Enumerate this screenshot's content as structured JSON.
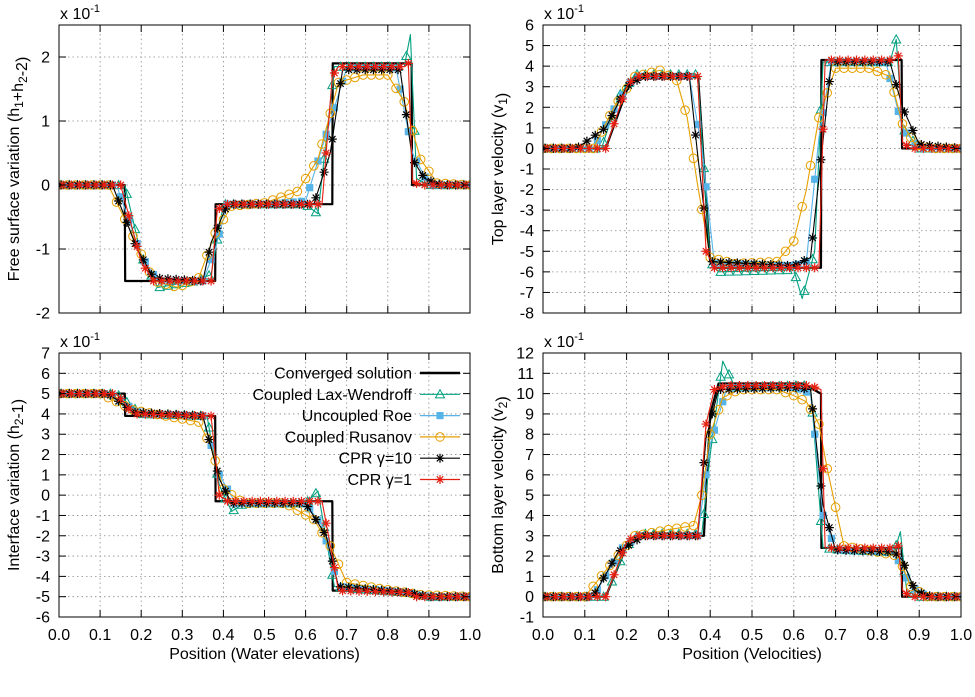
{
  "chart_data": [
    {
      "type": "line",
      "id": "free-surface",
      "ylabel": "Free surface variation (h1+h2-2)",
      "xlabel": "",
      "scale_label": "x 10",
      "scale_exp": "-1",
      "xlim": [
        0,
        1
      ],
      "ylim": [
        -2,
        2.5
      ],
      "yticks": [
        -2,
        -1,
        0,
        1,
        2
      ],
      "xticks": [],
      "grid": true,
      "series": [
        {
          "name": "Converged solution",
          "x": [
            0,
            0.16,
            0.161,
            0.38,
            0.381,
            0.665,
            0.666,
            0.858,
            0.859,
            1
          ],
          "y": [
            0,
            0,
            -1.5,
            -1.5,
            -0.3,
            -0.3,
            1.9,
            1.9,
            0,
            0
          ]
        },
        {
          "name": "Coupled Lax-Wendroff",
          "x": [
            0,
            0.16,
            0.2,
            0.24,
            0.33,
            0.37,
            0.4,
            0.47,
            0.6,
            0.63,
            0.67,
            0.72,
            0.84,
            0.855,
            0.87,
            0.9,
            1
          ],
          "y": [
            0,
            0,
            -1.1,
            -1.6,
            -1.5,
            -1.4,
            -0.3,
            -0.3,
            -0.3,
            -0.45,
            1.85,
            1.85,
            1.85,
            2.35,
            0.1,
            0,
            0
          ]
        },
        {
          "name": "Uncoupled Roe",
          "x": [
            0,
            0.14,
            0.2,
            0.24,
            0.35,
            0.38,
            0.41,
            0.5,
            0.6,
            0.66,
            0.7,
            0.82,
            0.86,
            0.9,
            1
          ],
          "y": [
            0,
            0,
            -1.1,
            -1.5,
            -1.5,
            -1.0,
            -0.3,
            -0.3,
            -0.25,
            1.0,
            1.83,
            1.83,
            0.5,
            0,
            0
          ]
        },
        {
          "name": "Coupled Rusanov",
          "x": [
            0,
            0.12,
            0.18,
            0.23,
            0.29,
            0.34,
            0.38,
            0.42,
            0.5,
            0.58,
            0.63,
            0.68,
            0.74,
            0.8,
            0.84,
            0.88,
            0.92,
            1
          ],
          "y": [
            0,
            0,
            -0.8,
            -1.5,
            -1.6,
            -1.45,
            -0.75,
            -0.33,
            -0.28,
            -0.1,
            0.4,
            1.6,
            1.72,
            1.72,
            1.3,
            0.4,
            0.03,
            0
          ]
        },
        {
          "name": "CPR γ=10",
          "x": [
            0,
            0.13,
            0.19,
            0.23,
            0.35,
            0.37,
            0.41,
            0.5,
            0.62,
            0.66,
            0.69,
            0.83,
            0.86,
            0.89,
            0.93,
            1
          ],
          "y": [
            0,
            0,
            -1.0,
            -1.45,
            -1.5,
            -0.9,
            -0.3,
            -0.3,
            -0.3,
            0.5,
            1.8,
            1.8,
            0.4,
            0.1,
            0,
            0
          ]
        },
        {
          "name": "CPR γ=1",
          "x": [
            0,
            0.15,
            0.2,
            0.23,
            0.37,
            0.385,
            0.4,
            0.5,
            0.64,
            0.665,
            0.68,
            0.84,
            0.85,
            0.86,
            0.88,
            1
          ],
          "y": [
            0,
            0,
            -1.2,
            -1.5,
            -1.5,
            -0.4,
            -0.3,
            -0.3,
            -0.3,
            1.7,
            1.85,
            1.85,
            1.9,
            0.05,
            0,
            0
          ]
        }
      ]
    },
    {
      "type": "line",
      "id": "top-velocity",
      "ylabel": "Top layer velocity (v1)",
      "xlabel": "",
      "scale_label": "x 10",
      "scale_exp": "-1",
      "xlim": [
        0,
        1
      ],
      "ylim": [
        -8,
        6
      ],
      "yticks": [
        -8,
        -7,
        -6,
        -5,
        -4,
        -3,
        -2,
        -1,
        0,
        1,
        2,
        3,
        4,
        5,
        6
      ],
      "xticks": [],
      "grid": true,
      "series": [
        {
          "name": "Converged solution",
          "x": [
            0,
            0.15,
            0.2,
            0.22,
            0.37,
            0.371,
            0.4,
            0.41,
            0.64,
            0.665,
            0.666,
            0.858,
            0.859,
            1
          ],
          "y": [
            0,
            0,
            2.8,
            3.5,
            3.5,
            3.5,
            -5.5,
            -5.8,
            -5.8,
            -5.8,
            4.3,
            4.3,
            0,
            0
          ]
        },
        {
          "name": "Coupled Lax-Wendroff",
          "x": [
            0,
            0.14,
            0.18,
            0.22,
            0.37,
            0.4,
            0.42,
            0.6,
            0.62,
            0.65,
            0.67,
            0.83,
            0.845,
            0.86,
            0.9,
            1
          ],
          "y": [
            0,
            0,
            2.5,
            3.6,
            3.6,
            -5.5,
            -6.0,
            -5.9,
            -7.3,
            -5.0,
            4.2,
            4.2,
            5.3,
            1.0,
            0,
            0
          ]
        },
        {
          "name": "Uncoupled Roe",
          "x": [
            0,
            0.12,
            0.18,
            0.22,
            0.35,
            0.38,
            0.41,
            0.6,
            0.63,
            0.66,
            0.69,
            0.82,
            0.86,
            0.9,
            1
          ],
          "y": [
            0,
            0,
            2.3,
            3.5,
            3.5,
            0.0,
            -5.6,
            -5.7,
            -5.5,
            0.5,
            4.2,
            4.2,
            1.0,
            0,
            0
          ]
        },
        {
          "name": "Coupled Rusanov",
          "x": [
            0,
            0.12,
            0.17,
            0.22,
            0.28,
            0.32,
            0.345,
            0.37,
            0.4,
            0.46,
            0.56,
            0.6,
            0.63,
            0.66,
            0.7,
            0.78,
            0.83,
            0.86,
            0.89,
            0.93,
            1
          ],
          "y": [
            0,
            0,
            2.0,
            3.5,
            3.8,
            3.3,
            1.5,
            -1.8,
            -5.3,
            -5.6,
            -5.5,
            -4.5,
            -2.0,
            1.5,
            3.9,
            3.9,
            3.5,
            1.2,
            0.2,
            0,
            0
          ]
        },
        {
          "name": "CPR γ=10",
          "x": [
            0,
            0.08,
            0.15,
            0.2,
            0.24,
            0.35,
            0.37,
            0.4,
            0.6,
            0.64,
            0.66,
            0.69,
            0.83,
            0.86,
            0.9,
            1
          ],
          "y": [
            0,
            0,
            1.0,
            3.0,
            3.5,
            3.5,
            -0.3,
            -5.5,
            -5.7,
            -5.3,
            -1.5,
            4.2,
            4.2,
            2.0,
            0.2,
            0
          ]
        },
        {
          "name": "CPR γ=1",
          "x": [
            0,
            0.15,
            0.2,
            0.22,
            0.37,
            0.39,
            0.41,
            0.64,
            0.66,
            0.675,
            0.84,
            0.85,
            0.86,
            0.88,
            1
          ],
          "y": [
            0,
            0,
            3.0,
            3.5,
            3.5,
            -5.0,
            -5.8,
            -5.8,
            -5.8,
            4.3,
            4.3,
            4.5,
            0.3,
            0,
            0
          ]
        }
      ]
    },
    {
      "type": "line",
      "id": "interface",
      "ylabel": "Interface variation (h2-1)",
      "xlabel": "Position (Water elevations)",
      "scale_label": "x 10",
      "scale_exp": "-1",
      "xlim": [
        0,
        1
      ],
      "ylim": [
        -6,
        7
      ],
      "yticks": [
        -6,
        -5,
        -4,
        -3,
        -2,
        -1,
        0,
        1,
        2,
        3,
        4,
        5,
        6,
        7
      ],
      "xticks": [
        "0.0",
        "0.1",
        "0.2",
        "0.3",
        "0.4",
        "0.5",
        "0.6",
        "0.7",
        "0.8",
        "0.9",
        "1.0"
      ],
      "grid": true,
      "legend_position": "top-right",
      "series": [
        {
          "name": "Converged solution",
          "x": [
            0,
            0.16,
            0.161,
            0.38,
            0.381,
            0.665,
            0.666,
            0.858,
            0.859,
            1
          ],
          "y": [
            5,
            5,
            3.9,
            3.9,
            -0.3,
            -0.3,
            -4.7,
            -4.7,
            -5.0,
            -5.0
          ]
        },
        {
          "name": "Coupled Lax-Wendroff",
          "x": [
            0,
            0.14,
            0.2,
            0.36,
            0.39,
            0.42,
            0.45,
            0.6,
            0.63,
            0.67,
            0.72,
            0.85,
            0.9,
            1
          ],
          "y": [
            5,
            5,
            4.0,
            3.9,
            0.5,
            -0.8,
            -0.4,
            -0.4,
            0.2,
            -4.5,
            -4.6,
            -4.8,
            -5.0,
            -5.0
          ]
        },
        {
          "name": "Uncoupled Roe",
          "x": [
            0,
            0.12,
            0.2,
            0.35,
            0.39,
            0.43,
            0.6,
            0.64,
            0.68,
            0.85,
            0.9,
            1
          ],
          "y": [
            5,
            5,
            4.0,
            3.9,
            1.0,
            -0.4,
            -0.4,
            -1.5,
            -4.5,
            -4.8,
            -5.0,
            -5.0
          ]
        },
        {
          "name": "Coupled Rusanov",
          "x": [
            0,
            0.1,
            0.18,
            0.26,
            0.34,
            0.37,
            0.4,
            0.45,
            0.55,
            0.62,
            0.66,
            0.7,
            0.78,
            0.88,
            1
          ],
          "y": [
            5,
            5,
            4.2,
            3.9,
            3.6,
            2.4,
            0.3,
            -0.4,
            -0.4,
            -1.2,
            -2.5,
            -4.3,
            -4.6,
            -4.9,
            -5.0
          ]
        },
        {
          "name": "CPR γ=10",
          "x": [
            0,
            0.12,
            0.18,
            0.35,
            0.39,
            0.42,
            0.6,
            0.65,
            0.68,
            0.85,
            0.9,
            1
          ],
          "y": [
            5,
            5,
            4.1,
            3.9,
            0.8,
            -0.4,
            -0.4,
            -2.0,
            -4.5,
            -4.8,
            -5.0,
            -5.0
          ]
        },
        {
          "name": "CPR γ=1",
          "x": [
            0,
            0.14,
            0.18,
            0.37,
            0.39,
            0.41,
            0.64,
            0.665,
            0.68,
            0.85,
            0.87,
            1
          ],
          "y": [
            5,
            5,
            4.0,
            3.9,
            0.0,
            -0.3,
            -0.3,
            -3.0,
            -4.7,
            -4.8,
            -5.0,
            -5.0
          ]
        }
      ]
    },
    {
      "type": "line",
      "id": "bottom-velocity",
      "ylabel": "Bottom layer velocity (v2)",
      "xlabel": "Position (Velocities)",
      "scale_label": "x 10",
      "scale_exp": "-1",
      "xlim": [
        0,
        1
      ],
      "ylim": [
        -1,
        12
      ],
      "yticks": [
        -1,
        0,
        1,
        2,
        3,
        4,
        5,
        6,
        7,
        8,
        9,
        10,
        11,
        12
      ],
      "xticks": [
        "0.0",
        "0.1",
        "0.2",
        "0.3",
        "0.4",
        "0.5",
        "0.6",
        "0.7",
        "0.8",
        "0.9",
        "1.0"
      ],
      "grid": true,
      "series": [
        {
          "name": "Converged solution",
          "x": [
            0,
            0.15,
            0.2,
            0.22,
            0.38,
            0.385,
            0.4,
            0.42,
            0.62,
            0.665,
            0.666,
            0.858,
            0.859,
            1
          ],
          "y": [
            0,
            0,
            2.5,
            3.0,
            3.0,
            3.0,
            9.0,
            10.5,
            10.5,
            10.0,
            2.4,
            2.4,
            0,
            0
          ]
        },
        {
          "name": "Coupled Lax-Wendroff",
          "x": [
            0,
            0.15,
            0.2,
            0.23,
            0.38,
            0.4,
            0.43,
            0.46,
            0.6,
            0.64,
            0.67,
            0.72,
            0.84,
            0.855,
            0.87,
            0.9,
            1
          ],
          "y": [
            0,
            0,
            2.5,
            3.1,
            3.1,
            7.0,
            11.6,
            10.3,
            10.4,
            10.4,
            2.4,
            2.3,
            2.2,
            3.2,
            0.3,
            0,
            0
          ]
        },
        {
          "name": "Uncoupled Roe",
          "x": [
            0,
            0.12,
            0.19,
            0.23,
            0.37,
            0.4,
            0.44,
            0.6,
            0.64,
            0.67,
            0.7,
            0.84,
            0.88,
            0.92,
            1
          ],
          "y": [
            0,
            0,
            2.4,
            3.0,
            3.0,
            7.5,
            10.3,
            10.3,
            10.0,
            4.0,
            2.3,
            2.2,
            0.5,
            0,
            0
          ]
        },
        {
          "name": "Coupled Rusanov",
          "x": [
            0,
            0.1,
            0.17,
            0.22,
            0.3,
            0.36,
            0.38,
            0.4,
            0.43,
            0.47,
            0.56,
            0.6,
            0.63,
            0.66,
            0.68,
            0.72,
            0.8,
            0.85,
            0.88,
            0.92,
            1
          ],
          "y": [
            0,
            0,
            1.8,
            3.0,
            3.3,
            3.5,
            5.0,
            8.0,
            9.8,
            10.2,
            10.2,
            9.9,
            9.6,
            8.5,
            6.3,
            2.5,
            2.2,
            2.0,
            0.5,
            0,
            0
          ]
        },
        {
          "name": "CPR γ=10",
          "x": [
            0,
            0.12,
            0.18,
            0.24,
            0.37,
            0.39,
            0.42,
            0.6,
            0.64,
            0.67,
            0.7,
            0.84,
            0.86,
            0.89,
            0.93,
            1
          ],
          "y": [
            0,
            0,
            2.2,
            3.0,
            3.0,
            7.8,
            10.2,
            10.3,
            10.2,
            4.5,
            2.3,
            2.2,
            1.8,
            0.3,
            0,
            0
          ]
        },
        {
          "name": "CPR γ=1",
          "x": [
            0,
            0.15,
            0.2,
            0.22,
            0.37,
            0.39,
            0.41,
            0.44,
            0.64,
            0.665,
            0.675,
            0.84,
            0.85,
            0.86,
            0.88,
            1
          ],
          "y": [
            0,
            0,
            2.7,
            3.0,
            3.0,
            8.5,
            10.2,
            10.4,
            10.4,
            10.2,
            2.4,
            2.4,
            2.5,
            0.3,
            0,
            0
          ]
        }
      ]
    }
  ],
  "series_colors": {
    "Converged solution": "#000000",
    "Coupled Lax-Wendroff": "#00a080",
    "Uncoupled Roe": "#56b4e9",
    "Coupled Rusanov": "#e69f00",
    "CPR γ=10": "#000000",
    "CPR γ=1": "#e51e10"
  },
  "series_markers": {
    "Converged solution": "none",
    "Coupled Lax-Wendroff": "triangle-open",
    "Uncoupled Roe": "square-filled",
    "Coupled Rusanov": "circle-open",
    "CPR γ=10": "asterisk",
    "CPR γ=1": "asterisk"
  }
}
